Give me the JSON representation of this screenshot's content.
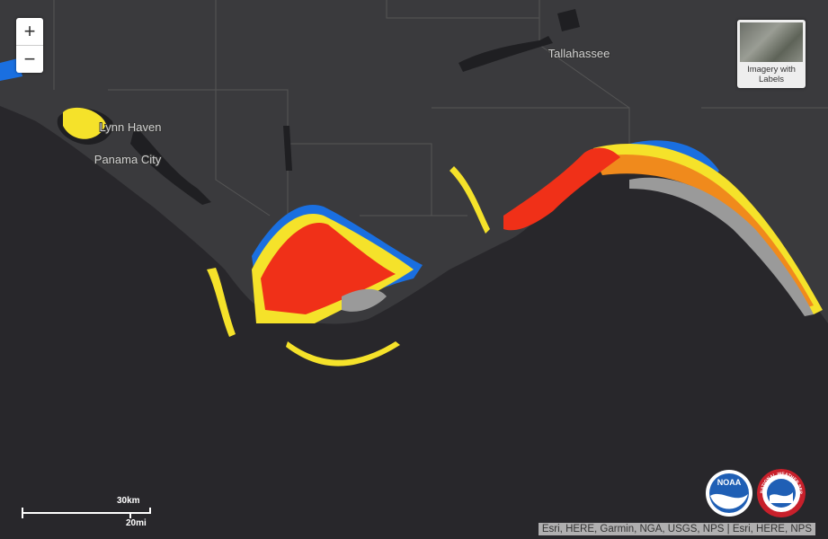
{
  "map": {
    "zoom_controls": {
      "zoom_in": "+",
      "zoom_out": "−"
    },
    "place_labels": [
      "Tallahassee",
      "Lynn Haven",
      "Panama City"
    ],
    "basemap_toggle": {
      "label": "Imagery with Labels"
    },
    "scale_bar": {
      "metric": "30km",
      "imperial": "20mi"
    },
    "attribution": "Esri, HERE, Garmin, NGA, USGS, NPS | Esri, HERE, NPS",
    "logos": {
      "noaa": "NOAA",
      "nws": "NATIONAL WEATHER SERVICE"
    }
  }
}
